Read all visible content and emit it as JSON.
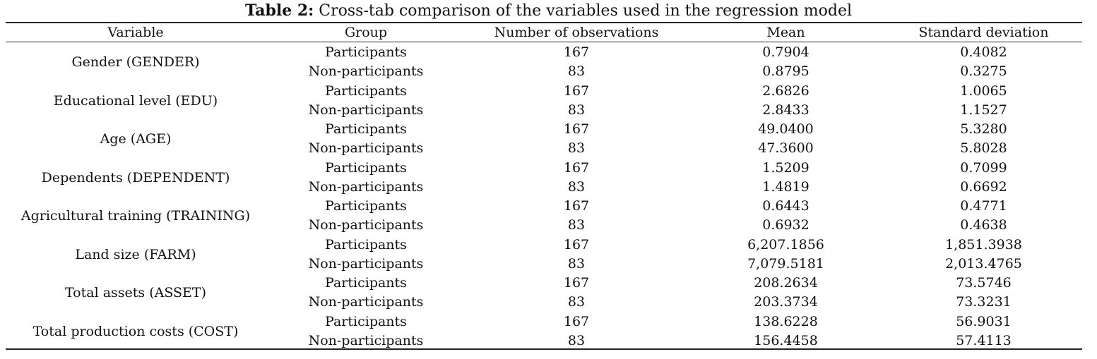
{
  "caption": {
    "label": "Table 2:",
    "text": "Cross-tab comparison of the variables used in the regression model"
  },
  "columns": [
    "Variable",
    "Group",
    "Number of observations",
    "Mean",
    "Standard deviation"
  ],
  "variables": [
    {
      "name": "Gender (GENDER)",
      "rows": [
        {
          "group": "Participants",
          "n": "167",
          "mean": "0.7904",
          "sd": "0.4082"
        },
        {
          "group": "Non-participants",
          "n": "83",
          "mean": "0.8795",
          "sd": "0.3275"
        }
      ]
    },
    {
      "name": "Educational level (EDU)",
      "rows": [
        {
          "group": "Participants",
          "n": "167",
          "mean": "2.6826",
          "sd": "1.0065"
        },
        {
          "group": "Non-participants",
          "n": "83",
          "mean": "2.8433",
          "sd": "1.1527"
        }
      ]
    },
    {
      "name": "Age (AGE)",
      "rows": [
        {
          "group": "Participants",
          "n": "167",
          "mean": "49.0400",
          "sd": "5.3280"
        },
        {
          "group": "Non-participants",
          "n": "83",
          "mean": "47.3600",
          "sd": "5.8028"
        }
      ]
    },
    {
      "name": "Dependents (DEPENDENT)",
      "rows": [
        {
          "group": "Participants",
          "n": "167",
          "mean": "1.5209",
          "sd": "0.7099"
        },
        {
          "group": "Non-participants",
          "n": "83",
          "mean": "1.4819",
          "sd": "0.6692"
        }
      ]
    },
    {
      "name": "Agricultural training (TRAINING)",
      "rows": [
        {
          "group": "Participants",
          "n": "167",
          "mean": "0.6443",
          "sd": "0.4771"
        },
        {
          "group": "Non-participants",
          "n": "83",
          "mean": "0.6932",
          "sd": "0.4638"
        }
      ]
    },
    {
      "name": "Land size (FARM)",
      "rows": [
        {
          "group": "Participants",
          "n": "167",
          "mean": "6,207.1856",
          "sd": "1,851.3938"
        },
        {
          "group": "Non-participants",
          "n": "83",
          "mean": "7,079.5181",
          "sd": "2,013.4765"
        }
      ]
    },
    {
      "name": "Total assets (ASSET)",
      "rows": [
        {
          "group": "Participants",
          "n": "167",
          "mean": "208.2634",
          "sd": "73.5746"
        },
        {
          "group": "Non-participants",
          "n": "83",
          "mean": "203.3734",
          "sd": "73.3231"
        }
      ]
    },
    {
      "name": "Total production costs (COST)",
      "rows": [
        {
          "group": "Participants",
          "n": "167",
          "mean": "138.6228",
          "sd": "56.9031"
        },
        {
          "group": "Non-participants",
          "n": "83",
          "mean": "156.4458",
          "sd": "57.4113"
        }
      ]
    }
  ]
}
